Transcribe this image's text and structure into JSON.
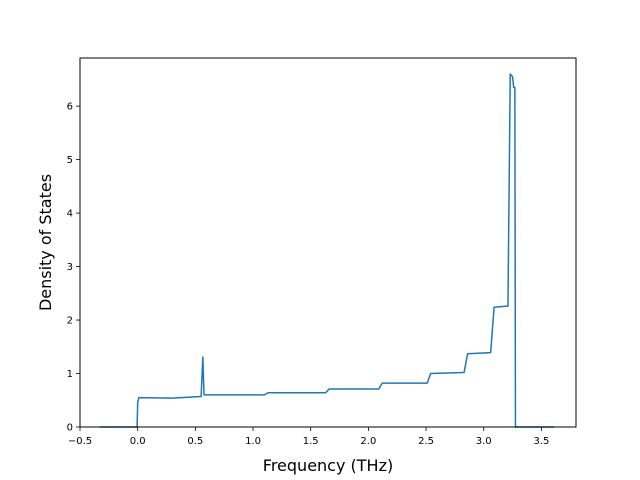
{
  "chart_data": {
    "type": "line",
    "title": "",
    "xlabel": "Frequency (THz)",
    "ylabel": "Density of States",
    "xlim": [
      -0.5,
      3.8
    ],
    "ylim": [
      0,
      6.9
    ],
    "xticks": [
      -0.5,
      0.0,
      0.5,
      1.0,
      1.5,
      2.0,
      2.5,
      3.0,
      3.5
    ],
    "xtick_labels": [
      "−0.5",
      "0.0",
      "0.5",
      "1.0",
      "1.5",
      "2.0",
      "2.5",
      "3.0",
      "3.5"
    ],
    "yticks": [
      0,
      1,
      2,
      3,
      4,
      5,
      6
    ],
    "ytick_labels": [
      "0",
      "1",
      "2",
      "3",
      "4",
      "5",
      "6"
    ],
    "grid": false,
    "legend": "none",
    "series": [
      {
        "color": "#1f77b4",
        "x": [
          -0.33,
          -0.005,
          0.0,
          0.01,
          0.3,
          0.55,
          0.565,
          0.575,
          0.585,
          1.1,
          1.13,
          1.63,
          1.66,
          2.09,
          2.12,
          2.51,
          2.54,
          2.83,
          2.86,
          3.06,
          3.09,
          3.2,
          3.21,
          3.23,
          3.25,
          3.26,
          3.27,
          3.275,
          3.61
        ],
        "y": [
          0,
          0,
          0.45,
          0.55,
          0.54,
          0.57,
          1.31,
          0.6,
          0.6,
          0.6,
          0.64,
          0.64,
          0.71,
          0.71,
          0.82,
          0.82,
          1.0,
          1.02,
          1.37,
          1.39,
          2.24,
          2.26,
          2.26,
          6.6,
          6.55,
          6.35,
          6.35,
          0,
          0
        ]
      }
    ]
  }
}
